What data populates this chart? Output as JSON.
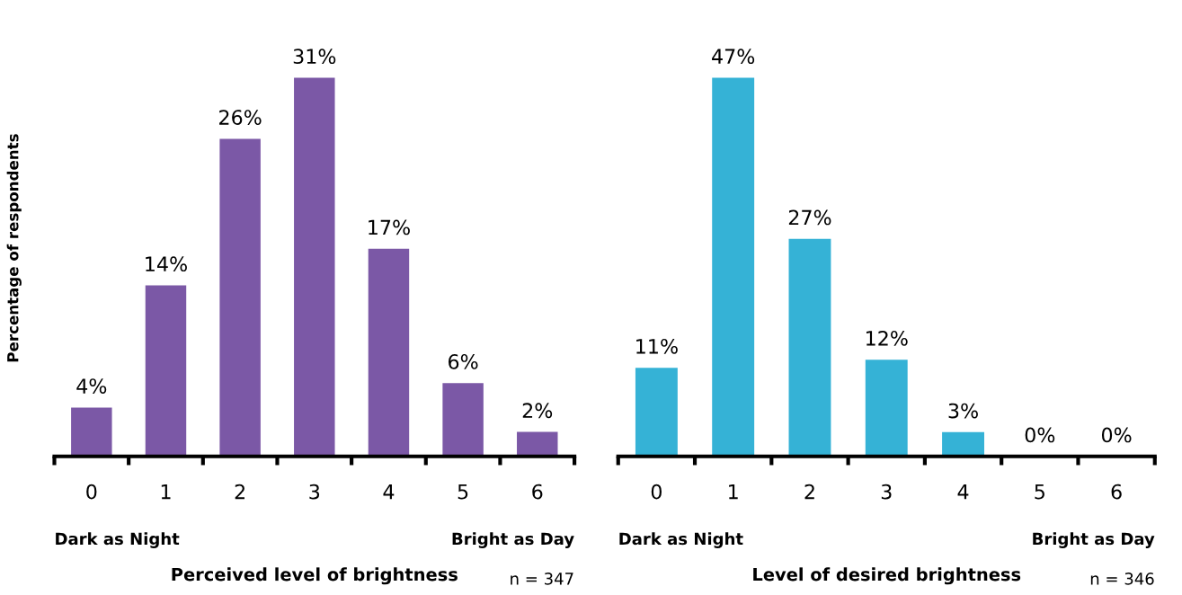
{
  "chart_data": [
    {
      "type": "bar",
      "xlabel": "Perceived level of brightness",
      "ylabel": "Percentage of respondents",
      "categories": [
        "0",
        "1",
        "2",
        "3",
        "4",
        "5",
        "6"
      ],
      "values": [
        4,
        14,
        26,
        31,
        17,
        6,
        2
      ],
      "value_labels": [
        "4%",
        "14%",
        "26%",
        "31%",
        "17%",
        "6%",
        "2%"
      ],
      "color": "#7b58a6",
      "grid": false,
      "legend": false,
      "tick_labels": "x",
      "annotations": [
        "Dark as Night",
        "Bright as Day",
        "n = 347"
      ]
    },
    {
      "type": "bar",
      "xlabel": "Level of desired brightness",
      "categories": [
        "0",
        "1",
        "2",
        "3",
        "4",
        "5",
        "6"
      ],
      "values": [
        11,
        47,
        27,
        12,
        3,
        0,
        0
      ],
      "value_labels": [
        "11%",
        "47%",
        "27%",
        "12%",
        "3%",
        "0%",
        "0%"
      ],
      "color": "#35b2d6",
      "grid": false,
      "legend": false,
      "tick_labels": "x",
      "annotations": [
        "Dark as Night",
        "Bright as Day",
        "n = 346"
      ]
    }
  ]
}
